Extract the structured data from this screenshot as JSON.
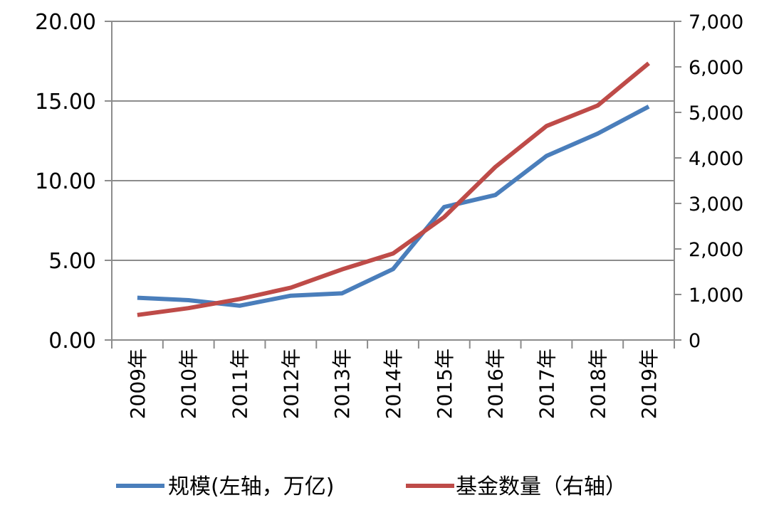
{
  "chart_data": {
    "type": "line",
    "categories": [
      "2009年",
      "2010年",
      "2011年",
      "2012年",
      "2013年",
      "2014年",
      "2015年",
      "2016年",
      "2017年",
      "2018年",
      "2019年"
    ],
    "series": [
      {
        "name": "规模(左轴，万亿)",
        "axis": "left",
        "color": "#4a7ebb",
        "values": [
          2.65,
          2.5,
          2.15,
          2.78,
          2.93,
          4.45,
          8.35,
          9.1,
          11.55,
          12.95,
          14.65
        ]
      },
      {
        "name": "基金数量（右轴）",
        "axis": "right",
        "color": "#be4b48",
        "values": [
          550,
          700,
          900,
          1150,
          1550,
          1900,
          2700,
          3800,
          4700,
          5150,
          6080
        ]
      }
    ],
    "left_axis": {
      "min": 0,
      "max": 20,
      "ticks": [
        0,
        5,
        10,
        15,
        20
      ],
      "tick_labels": [
        "0.00",
        "5.00",
        "10.00",
        "15.00",
        "20.00"
      ]
    },
    "right_axis": {
      "min": 0,
      "max": 7000,
      "ticks": [
        0,
        1000,
        2000,
        3000,
        4000,
        5000,
        6000,
        7000
      ],
      "tick_labels": [
        "0",
        "1,000",
        "2,000",
        "3,000",
        "4,000",
        "5,000",
        "6,000",
        "7,000"
      ]
    },
    "gridlines": true,
    "legend_position": "bottom",
    "colors": {
      "axis": "#8c8c8c",
      "grid": "#8c8c8c"
    }
  }
}
